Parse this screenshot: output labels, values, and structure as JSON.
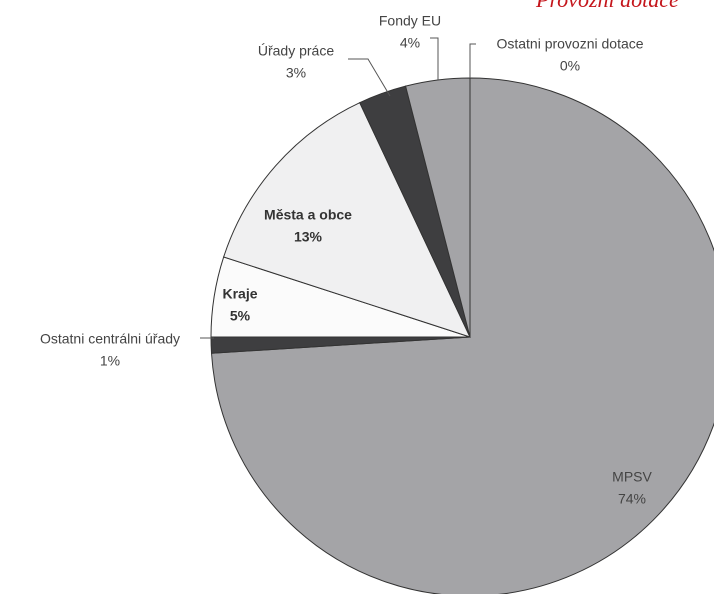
{
  "chart_data": {
    "type": "pie",
    "title": "Provozní dotace",
    "categories": [
      "MPSV",
      "Ostatni centrálni úřady",
      "Kraje",
      "Města a obce",
      "Úřady práce",
      "Fondy EU",
      "Ostatni provozni dotace"
    ],
    "values": [
      74,
      1,
      5,
      13,
      3,
      4,
      0
    ],
    "value_labels": [
      "74%",
      "1%",
      "5%",
      "13%",
      "3%",
      "4%",
      "0%"
    ],
    "colors": [
      "#a4a4a7",
      "#3e3e40",
      "#fbfbfb",
      "#f0f0f1",
      "#3e3e40",
      "#a4a4a7",
      "#a4a4a7"
    ]
  }
}
